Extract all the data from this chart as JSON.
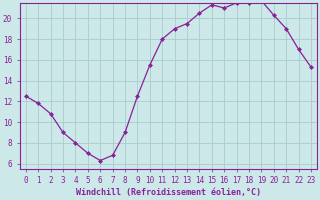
{
  "x": [
    0,
    1,
    2,
    3,
    4,
    5,
    6,
    7,
    8,
    9,
    10,
    11,
    12,
    13,
    14,
    15,
    16,
    17,
    18,
    19,
    20,
    21,
    22,
    23
  ],
  "y": [
    12.5,
    11.8,
    10.8,
    9.0,
    8.0,
    7.0,
    6.3,
    6.8,
    9.0,
    12.5,
    15.5,
    18.0,
    19.0,
    19.5,
    20.5,
    21.3,
    21.0,
    21.5,
    21.5,
    21.7,
    20.3,
    19.0,
    17.0,
    15.3
  ],
  "line_color": "#882299",
  "marker": "D",
  "marker_size": 2.0,
  "bg_color": "#cce8e8",
  "grid_color": "#aacccc",
  "xlabel": "Windchill (Refroidissement éolien,°C)",
  "xlabel_fontsize": 6.0,
  "tick_fontsize": 5.5,
  "ylim": [
    5.5,
    21.5
  ],
  "yticks": [
    6,
    8,
    10,
    12,
    14,
    16,
    18,
    20
  ],
  "xlim": [
    -0.5,
    23.5
  ]
}
